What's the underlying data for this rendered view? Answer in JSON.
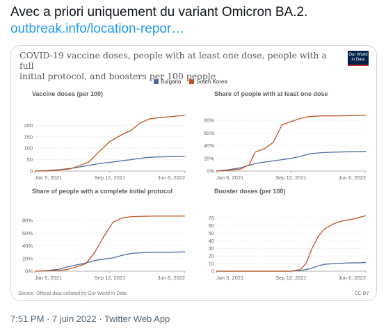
{
  "tweet": {
    "text": "Avec a priori uniquement du variant Omicron BA.2.",
    "link": "outbreak.info/location-repor…",
    "timestamp": "7:51 PM · 7 juin 2022 · Twitter Web App"
  },
  "card": {
    "title_line1": "COVID-19 vaccine doses, people with at least one dose, people with a full",
    "title_line2": "initial protocol, and boosters per 100 people",
    "logo_line1": "Our World",
    "logo_line2": "in Data",
    "source": "Source: Official data collated by Our World in Data",
    "license": "CC BY"
  },
  "colors": {
    "bulgaria": "#4c6a9c",
    "south_korea": "#c0531f"
  },
  "chart_data": [
    {
      "type": "line",
      "title": "Vaccine doses (per 100)",
      "xlabel": "",
      "ylabel": "",
      "x_ticks": [
        "Jan 5, 2021",
        "Sep 12, 2021",
        "Jun 6, 2022"
      ],
      "y_ticks": [
        "0",
        "50",
        "100",
        "150",
        "200"
      ],
      "ylim": [
        0,
        250
      ],
      "grid": true,
      "legend": "top-center",
      "x": [
        0,
        0.08,
        0.16,
        0.24,
        0.3,
        0.36,
        0.42,
        0.5,
        0.58,
        0.64,
        0.7,
        0.76,
        0.82,
        0.9,
        0.96,
        1.0
      ],
      "series": [
        {
          "name": "Bulgaria",
          "values": [
            0,
            2,
            6,
            12,
            18,
            25,
            32,
            38,
            45,
            50,
            56,
            60,
            62,
            63,
            64,
            64
          ]
        },
        {
          "name": "South Korea",
          "values": [
            0,
            1,
            4,
            10,
            25,
            40,
            80,
            130,
            160,
            178,
            210,
            228,
            234,
            238,
            242,
            244
          ]
        }
      ]
    },
    {
      "type": "line",
      "title": "Share of people with at least one dose",
      "xlabel": "",
      "ylabel": "",
      "x_ticks": [
        "Jan 5, 2021",
        "Sep 12, 2021",
        "Jun 6, 2022"
      ],
      "y_ticks": [
        "0%",
        "20%",
        "40%",
        "60%",
        "80%"
      ],
      "ylim": [
        0,
        90
      ],
      "grid": true,
      "x": [
        0,
        0.08,
        0.16,
        0.22,
        0.26,
        0.32,
        0.38,
        0.44,
        0.5,
        0.56,
        0.62,
        0.7,
        0.8,
        0.9,
        1.0
      ],
      "series": [
        {
          "name": "Bulgaria",
          "values": [
            0,
            2,
            5,
            9,
            12,
            14,
            16,
            18,
            20,
            23,
            27,
            29,
            30,
            30.5,
            31
          ]
        },
        {
          "name": "South Korea",
          "values": [
            0,
            1,
            3,
            10,
            30,
            35,
            45,
            73,
            78,
            83,
            86,
            87,
            87,
            87.5,
            88
          ]
        }
      ]
    },
    {
      "type": "line",
      "title": "Share of people with a complete initial protocol",
      "xlabel": "",
      "ylabel": "",
      "x_ticks": [
        "Jan 5, 2021",
        "Sep 12, 2021",
        "Jun 6, 2022"
      ],
      "y_ticks": [
        "0%",
        "20%",
        "40%",
        "60%",
        "80%"
      ],
      "ylim": [
        0,
        90
      ],
      "grid": true,
      "x": [
        0,
        0.08,
        0.16,
        0.22,
        0.28,
        0.34,
        0.4,
        0.46,
        0.52,
        0.58,
        0.64,
        0.7,
        0.8,
        0.9,
        1.0
      ],
      "series": [
        {
          "name": "Bulgaria",
          "values": [
            0,
            1,
            3,
            7,
            10,
            13,
            17,
            19,
            21,
            25,
            28,
            29,
            30,
            30,
            30.5
          ]
        },
        {
          "name": "South Korea",
          "values": [
            0,
            0.5,
            1,
            3,
            7,
            12,
            30,
            55,
            77,
            84,
            86,
            86.5,
            87,
            87,
            87
          ]
        }
      ]
    },
    {
      "type": "line",
      "title": "Booster doses (per 100)",
      "xlabel": "",
      "ylabel": "",
      "x_ticks": [
        "Jan 5, 2021",
        "Sep 12, 2021",
        "Jun 6, 2022"
      ],
      "y_ticks": [
        "0",
        "10",
        "20",
        "30",
        "40",
        "50",
        "60",
        "70"
      ],
      "ylim": [
        0,
        75
      ],
      "grid": true,
      "x": [
        0,
        0.2,
        0.4,
        0.5,
        0.56,
        0.6,
        0.64,
        0.68,
        0.72,
        0.78,
        0.84,
        0.9,
        0.96,
        1.0
      ],
      "series": [
        {
          "name": "Bulgaria",
          "values": [
            0,
            0,
            0,
            0,
            1,
            2,
            4,
            7,
            9,
            10,
            10.5,
            11,
            11,
            11.5
          ]
        },
        {
          "name": "South Korea",
          "values": [
            0,
            0,
            0,
            0,
            2,
            10,
            30,
            45,
            55,
            62,
            66,
            68,
            71,
            73
          ]
        }
      ]
    }
  ]
}
